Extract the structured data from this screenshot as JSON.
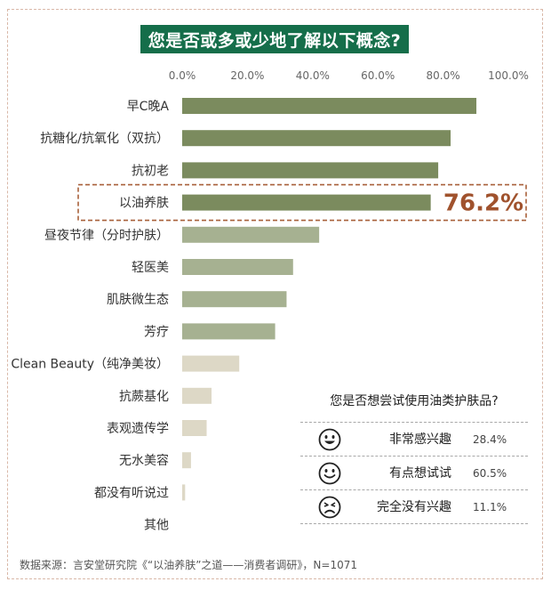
{
  "chart_data": {
    "type": "bar",
    "orientation": "horizontal",
    "title": "您是否或多或少地了解以下概念?",
    "xlabel": "",
    "ylabel": "",
    "xlim": [
      0,
      100
    ],
    "tick_labels": [
      "0.0%",
      "20.0%",
      "40.0%",
      "60.0%",
      "80.0%",
      "100.0%"
    ],
    "grid": false,
    "categories": [
      "早C晚A",
      "抗糖化/抗氧化（双抗）",
      "抗初老",
      "以油养肤",
      "昼夜节律（分时护肤）",
      "轻医美",
      "肌肤微生态",
      "芳疗",
      "Clean Beauty（纯净美妆）",
      "抗蕨基化",
      "表观遗传学",
      "无水美容",
      "都没有听说过",
      "其他"
    ],
    "values": [
      90.2,
      82.3,
      78.5,
      76.2,
      42.0,
      34.0,
      32.0,
      28.5,
      17.5,
      9.0,
      7.5,
      2.7,
      0.9,
      0
    ],
    "highlight": {
      "category": "以油养肤",
      "label": "76.2%"
    },
    "colors": {
      "dark": "#7b8b5e",
      "mid": "#a6b191",
      "light": "#ddd8c6",
      "highlight_border": "#a8603a"
    }
  },
  "survey": {
    "title": "您是否想尝试使用油类护肤品?",
    "options": [
      {
        "icon": "grin-face-icon",
        "label": "非常感兴趣",
        "pct": "28.4%"
      },
      {
        "icon": "smile-face-icon",
        "label": "有点想试试",
        "pct": "60.5%"
      },
      {
        "icon": "unhappy-face-icon",
        "label": "完全没有兴趣",
        "pct": "11.1%"
      }
    ]
  },
  "source": "数据来源：言安堂研究院《“以油养肤”之道——消费者调研》，N=1071"
}
